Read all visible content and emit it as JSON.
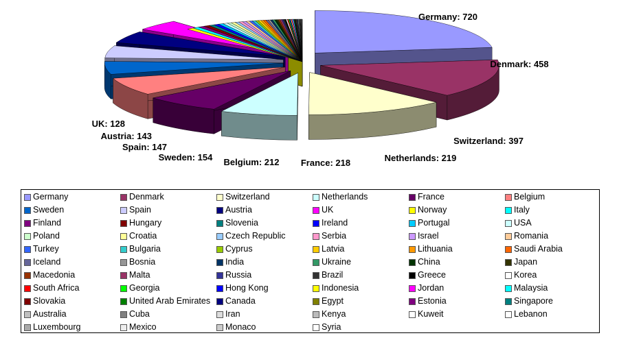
{
  "chart_data": {
    "type": "pie",
    "title": "",
    "three_d": true,
    "legend_position": "bottom",
    "slices": [
      {
        "name": "Germany",
        "value": 720,
        "label": "Germany: 720",
        "color": "#9999ff"
      },
      {
        "name": "Denmark",
        "value": 458,
        "label": "Denmark: 458",
        "color": "#993366"
      },
      {
        "name": "Switzerland",
        "value": 397,
        "label": "Switzerland: 397",
        "color": "#ffffcc"
      },
      {
        "name": "Netherlands",
        "value": 219,
        "label": "Netherlands: 219",
        "color": "#ccffff"
      },
      {
        "name": "France",
        "value": 218,
        "label": "France: 218",
        "color": "#660066"
      },
      {
        "name": "Belgium",
        "value": 212,
        "label": "Belgium: 212",
        "color": "#ff8080"
      },
      {
        "name": "Sweden",
        "value": 154,
        "label": "Sweden: 154",
        "color": "#0066cc"
      },
      {
        "name": "Spain",
        "value": 147,
        "label": "Spain: 147",
        "color": "#ccccff"
      },
      {
        "name": "Austria",
        "value": 143,
        "label": "Austria: 143",
        "color": "#000080"
      },
      {
        "name": "UK",
        "value": 128,
        "label": "UK: 128",
        "color": "#ff00ff"
      },
      {
        "name": "Norway",
        "value": 20,
        "color": "#ffff00"
      },
      {
        "name": "Italy",
        "value": 19,
        "color": "#00ffff"
      },
      {
        "name": "Finland",
        "value": 18,
        "color": "#800080"
      },
      {
        "name": "Hungary",
        "value": 17,
        "color": "#800000"
      },
      {
        "name": "Slovenia",
        "value": 16,
        "color": "#008080"
      },
      {
        "name": "Ireland",
        "value": 15,
        "color": "#0000ff"
      },
      {
        "name": "Portugal",
        "value": 14,
        "color": "#00ccff"
      },
      {
        "name": "USA",
        "value": 13,
        "color": "#ccffff"
      },
      {
        "name": "Poland",
        "value": 12,
        "color": "#ccffcc"
      },
      {
        "name": "Croatia",
        "value": 12,
        "color": "#ffff99"
      },
      {
        "name": "Czech Republic",
        "value": 11,
        "color": "#99ccff"
      },
      {
        "name": "Serbia",
        "value": 11,
        "color": "#ff99cc"
      },
      {
        "name": "Israel",
        "value": 10,
        "color": "#cc99ff"
      },
      {
        "name": "Romania",
        "value": 10,
        "color": "#ffcc99"
      },
      {
        "name": "Turkey",
        "value": 9,
        "color": "#3366ff"
      },
      {
        "name": "Bulgaria",
        "value": 9,
        "color": "#33cccc"
      },
      {
        "name": "Cyprus",
        "value": 8,
        "color": "#99cc00"
      },
      {
        "name": "Latvia",
        "value": 8,
        "color": "#ffcc00"
      },
      {
        "name": "Lithuania",
        "value": 7,
        "color": "#ff9900"
      },
      {
        "name": "Saudi Arabia",
        "value": 7,
        "color": "#ff6600"
      },
      {
        "name": "Iceland",
        "value": 7,
        "color": "#666699"
      },
      {
        "name": "Bosnia",
        "value": 6,
        "color": "#969696"
      },
      {
        "name": "India",
        "value": 6,
        "color": "#003366"
      },
      {
        "name": "Ukraine",
        "value": 6,
        "color": "#339966"
      },
      {
        "name": "China",
        "value": 5,
        "color": "#003300"
      },
      {
        "name": "Japan",
        "value": 5,
        "color": "#333300"
      },
      {
        "name": "Macedonia",
        "value": 5,
        "color": "#993300"
      },
      {
        "name": "Malta",
        "value": 5,
        "color": "#993366"
      },
      {
        "name": "Russia",
        "value": 4,
        "color": "#333399"
      },
      {
        "name": "Brazil",
        "value": 4,
        "color": "#333333"
      },
      {
        "name": "Greece",
        "value": 4,
        "color": "#000000"
      },
      {
        "name": "Korea",
        "value": 4,
        "color": "#ffffff"
      },
      {
        "name": "South Africa",
        "value": 3,
        "color": "#ff0000"
      },
      {
        "name": "Georgia",
        "value": 3,
        "color": "#00ff00"
      },
      {
        "name": "Hong Kong",
        "value": 3,
        "color": "#0000ff"
      },
      {
        "name": "Indonesia",
        "value": 3,
        "color": "#ffff00"
      },
      {
        "name": "Jordan",
        "value": 3,
        "color": "#ff00ff"
      },
      {
        "name": "Malaysia",
        "value": 3,
        "color": "#00ffff"
      },
      {
        "name": "Slovakia",
        "value": 2,
        "color": "#800000"
      },
      {
        "name": "United Arab Emirates",
        "value": 2,
        "color": "#008000"
      },
      {
        "name": "Canada",
        "value": 2,
        "color": "#000080"
      },
      {
        "name": "Egypt",
        "value": 2,
        "color": "#808000"
      },
      {
        "name": "Estonia",
        "value": 2,
        "color": "#800080"
      },
      {
        "name": "Singapore",
        "value": 2,
        "color": "#008080"
      },
      {
        "name": "Australia",
        "value": 2,
        "color": "#c0c0c0"
      },
      {
        "name": "Cuba",
        "value": 2,
        "color": "#808080"
      },
      {
        "name": "Iran",
        "value": 1,
        "color": "#dddddd"
      },
      {
        "name": "Kenya",
        "value": 1,
        "color": "#bbbbbb"
      },
      {
        "name": "Kuweit",
        "value": 1,
        "color": "#ffffff"
      },
      {
        "name": "Lebanon",
        "value": 1,
        "color": "#ffffff"
      },
      {
        "name": "Luxembourg",
        "value": 1,
        "color": "#aaaaaa"
      },
      {
        "name": "Mexico",
        "value": 1,
        "color": "#eeeeee"
      },
      {
        "name": "Monaco",
        "value": 1,
        "color": "#cccccc"
      },
      {
        "name": "Syria",
        "value": 1,
        "color": "#ffffff"
      }
    ]
  }
}
